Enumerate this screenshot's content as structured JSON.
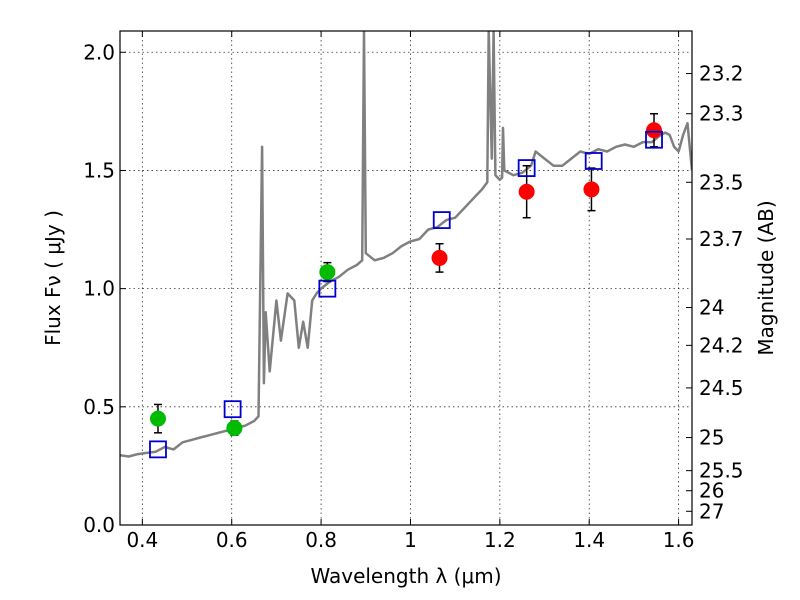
{
  "chart_data": {
    "type": "scatter",
    "title": "",
    "xlabel": "Wavelength  λ (μm)",
    "ylabel": "Flux  Fν  ( μJy )",
    "y2label": "Magnitude (AB)",
    "xlim": [
      0.35,
      1.63
    ],
    "ylim": [
      0.0,
      2.09
    ],
    "grid": true,
    "x_ticks": [
      {
        "value": 0.4,
        "label": "0.4"
      },
      {
        "value": 0.6,
        "label": "0.6"
      },
      {
        "value": 0.8,
        "label": "0.8"
      },
      {
        "value": 1.0,
        "label": "1"
      },
      {
        "value": 1.2,
        "label": "1.2"
      },
      {
        "value": 1.4,
        "label": "1.4"
      },
      {
        "value": 1.6,
        "label": "1.6"
      }
    ],
    "y_ticks": [
      {
        "value": 0.0,
        "label": "0.0"
      },
      {
        "value": 0.5,
        "label": "0.5"
      },
      {
        "value": 1.0,
        "label": "1.0"
      },
      {
        "value": 1.5,
        "label": "1.5"
      },
      {
        "value": 2.0,
        "label": "2.0"
      }
    ],
    "y2_ticks": [
      {
        "label": "23.2",
        "flux": 1.91
      },
      {
        "label": "23.3",
        "flux": 1.74
      },
      {
        "label": "23.5",
        "flux": 1.45
      },
      {
        "label": "23.7",
        "flux": 1.21
      },
      {
        "label": "24",
        "flux": 0.92
      },
      {
        "label": "24.2",
        "flux": 0.76
      },
      {
        "label": "24.5",
        "flux": 0.58
      },
      {
        "label": "25",
        "flux": 0.37
      },
      {
        "label": "25.5",
        "flux": 0.23
      },
      {
        "label": "26",
        "flux": 0.145
      },
      {
        "label": "27",
        "flux": 0.058
      }
    ],
    "series": [
      {
        "marker": "circle",
        "color": "#00bb00",
        "points": [
          {
            "x": 0.435,
            "y": 0.45,
            "err": 0.06
          },
          {
            "x": 0.606,
            "y": 0.41,
            "err": 0.03
          },
          {
            "x": 0.814,
            "y": 1.07,
            "err": 0.04
          }
        ]
      },
      {
        "marker": "circle",
        "color": "#ff0000",
        "points": [
          {
            "x": 1.065,
            "y": 1.13,
            "err": 0.06
          },
          {
            "x": 1.26,
            "y": 1.41,
            "err": 0.11
          },
          {
            "x": 1.405,
            "y": 1.42,
            "err": 0.09
          },
          {
            "x": 1.545,
            "y": 1.67,
            "err": 0.07
          }
        ]
      },
      {
        "marker": "square",
        "color": "#0000cc",
        "points": [
          {
            "x": 0.435,
            "y": 0.32
          },
          {
            "x": 0.602,
            "y": 0.49
          },
          {
            "x": 0.814,
            "y": 1.0
          },
          {
            "x": 1.07,
            "y": 1.29
          },
          {
            "x": 1.26,
            "y": 1.51
          },
          {
            "x": 1.41,
            "y": 1.54
          },
          {
            "x": 1.545,
            "y": 1.63
          }
        ]
      }
    ],
    "spectrum": {
      "color": "#808080",
      "points": [
        [
          0.35,
          0.295
        ],
        [
          0.37,
          0.29
        ],
        [
          0.39,
          0.3
        ],
        [
          0.41,
          0.305
        ],
        [
          0.43,
          0.31
        ],
        [
          0.45,
          0.33
        ],
        [
          0.47,
          0.32
        ],
        [
          0.49,
          0.35
        ],
        [
          0.51,
          0.36
        ],
        [
          0.53,
          0.37
        ],
        [
          0.55,
          0.38
        ],
        [
          0.57,
          0.39
        ],
        [
          0.59,
          0.4
        ],
        [
          0.61,
          0.41
        ],
        [
          0.63,
          0.42
        ],
        [
          0.65,
          0.44
        ],
        [
          0.66,
          0.46
        ],
        [
          0.668,
          1.6
        ],
        [
          0.672,
          0.6
        ],
        [
          0.676,
          0.9
        ],
        [
          0.685,
          0.65
        ],
        [
          0.7,
          0.95
        ],
        [
          0.71,
          0.78
        ],
        [
          0.725,
          0.98
        ],
        [
          0.74,
          0.95
        ],
        [
          0.75,
          0.75
        ],
        [
          0.76,
          0.86
        ],
        [
          0.77,
          0.75
        ],
        [
          0.78,
          0.95
        ],
        [
          0.79,
          0.98
        ],
        [
          0.8,
          1.0
        ],
        [
          0.82,
          1.03
        ],
        [
          0.84,
          1.05
        ],
        [
          0.86,
          1.08
        ],
        [
          0.88,
          1.1
        ],
        [
          0.892,
          1.12
        ],
        [
          0.896,
          2.09
        ],
        [
          0.9,
          1.15
        ],
        [
          0.92,
          1.12
        ],
        [
          0.94,
          1.13
        ],
        [
          0.96,
          1.15
        ],
        [
          0.98,
          1.18
        ],
        [
          1.0,
          1.2
        ],
        [
          1.02,
          1.21
        ],
        [
          1.04,
          1.25
        ],
        [
          1.06,
          1.26
        ],
        [
          1.08,
          1.29
        ],
        [
          1.1,
          1.3
        ],
        [
          1.12,
          1.34
        ],
        [
          1.14,
          1.38
        ],
        [
          1.16,
          1.42
        ],
        [
          1.172,
          1.45
        ],
        [
          1.175,
          2.09
        ],
        [
          1.182,
          1.55
        ],
        [
          1.186,
          2.09
        ],
        [
          1.19,
          1.48
        ],
        [
          1.2,
          1.46
        ],
        [
          1.205,
          1.47
        ],
        [
          1.207,
          1.68
        ],
        [
          1.21,
          1.5
        ],
        [
          1.23,
          1.48
        ],
        [
          1.25,
          1.49
        ],
        [
          1.27,
          1.52
        ],
        [
          1.28,
          1.58
        ],
        [
          1.3,
          1.55
        ],
        [
          1.32,
          1.52
        ],
        [
          1.34,
          1.52
        ],
        [
          1.36,
          1.55
        ],
        [
          1.38,
          1.58
        ],
        [
          1.4,
          1.57
        ],
        [
          1.42,
          1.59
        ],
        [
          1.44,
          1.58
        ],
        [
          1.46,
          1.6
        ],
        [
          1.48,
          1.61
        ],
        [
          1.5,
          1.6
        ],
        [
          1.52,
          1.62
        ],
        [
          1.54,
          1.62
        ],
        [
          1.56,
          1.65
        ],
        [
          1.57,
          1.66
        ],
        [
          1.58,
          1.65
        ],
        [
          1.59,
          1.6
        ],
        [
          1.6,
          1.58
        ],
        [
          1.61,
          1.65
        ],
        [
          1.62,
          1.7
        ],
        [
          1.63,
          1.5
        ]
      ]
    }
  }
}
